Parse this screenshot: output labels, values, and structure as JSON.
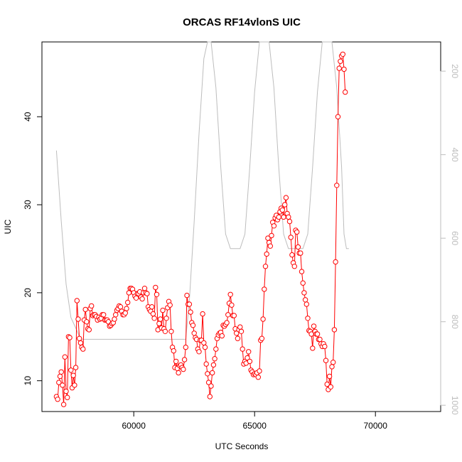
{
  "chart_data": {
    "type": "line",
    "title": "ORCAS RF14vlonS UIC",
    "xlabel": "UTC Seconds",
    "ylabel": "UIC",
    "xlim": [
      56200,
      72700
    ],
    "ylim": [
      6.5,
      48.5
    ],
    "x_ticks": [
      60000,
      65000,
      70000
    ],
    "x_tick_labels": [
      "60000",
      "65000",
      "70000"
    ],
    "y_ticks": [
      10,
      20,
      30,
      40
    ],
    "y_tick_labels": [
      "10",
      "20",
      "30",
      "40"
    ],
    "right_axis": {
      "ticks": [
        200,
        400,
        600,
        800,
        1000
      ],
      "tick_labels": [
        "200",
        "400",
        "600",
        "800",
        "1000"
      ],
      "range_top": 130,
      "range_bottom": 1015,
      "color": "#bdbdbd"
    },
    "colors": {
      "uic": "#ff0000",
      "pressure": "#bdbdbd",
      "axes": "#000000"
    },
    "series": [
      {
        "values": [
          [
            56800,
            8.2
          ],
          [
            56850,
            7.9
          ],
          [
            56900,
            9.8
          ],
          [
            56950,
            10.5
          ],
          [
            57000,
            11.0
          ],
          [
            57050,
            9.5
          ],
          [
            57100,
            7.3
          ],
          [
            57150,
            12.7
          ],
          [
            57200,
            8.8
          ],
          [
            57250,
            8.1
          ],
          [
            57300,
            15.0
          ],
          [
            57350,
            14.9
          ],
          [
            57400,
            11.2
          ],
          [
            57450,
            9.2
          ],
          [
            57500,
            10.6
          ],
          [
            57550,
            9.5
          ],
          [
            57600,
            11.5
          ],
          [
            57650,
            19.1
          ],
          [
            57700,
            17.0
          ],
          [
            57750,
            14.8
          ],
          [
            57800,
            14.3
          ],
          [
            57850,
            13.8
          ],
          [
            57900,
            13.6
          ],
          [
            57950,
            16.9
          ],
          [
            58000,
            18.1
          ],
          [
            58050,
            16.7
          ],
          [
            58100,
            15.9
          ],
          [
            58150,
            15.8
          ],
          [
            58200,
            18.2
          ],
          [
            58250,
            18.5
          ],
          [
            58300,
            17.4
          ],
          [
            58350,
            17.5
          ],
          [
            58400,
            17.5
          ],
          [
            58450,
            17.3
          ],
          [
            58500,
            16.9
          ],
          [
            58550,
            17.2
          ],
          [
            58600,
            17.0
          ],
          [
            58650,
            17.1
          ],
          [
            58700,
            17.5
          ],
          [
            58750,
            17.5
          ],
          [
            58800,
            16.9
          ],
          [
            58850,
            16.9
          ],
          [
            58900,
            16.9
          ],
          [
            58950,
            16.7
          ],
          [
            59000,
            16.2
          ],
          [
            59050,
            16.3
          ],
          [
            59100,
            16.5
          ],
          [
            59150,
            16.6
          ],
          [
            59200,
            17.0
          ],
          [
            59250,
            17.5
          ],
          [
            59300,
            18.0
          ],
          [
            59350,
            18.2
          ],
          [
            59400,
            18.5
          ],
          [
            59450,
            18.4
          ],
          [
            59500,
            17.9
          ],
          [
            59550,
            17.5
          ],
          [
            59600,
            17.5
          ],
          [
            59650,
            17.7
          ],
          [
            59700,
            18.2
          ],
          [
            59750,
            18.9
          ],
          [
            59800,
            20.0
          ],
          [
            59850,
            20.5
          ],
          [
            59900,
            20.5
          ],
          [
            59950,
            20.4
          ],
          [
            60000,
            20.0
          ],
          [
            60050,
            19.6
          ],
          [
            60100,
            19.4
          ],
          [
            60150,
            19.9
          ],
          [
            60200,
            19.9
          ],
          [
            60250,
            20.1
          ],
          [
            60300,
            19.5
          ],
          [
            60350,
            19.3
          ],
          [
            60400,
            20.0
          ],
          [
            60450,
            20.5
          ],
          [
            60500,
            20.0
          ],
          [
            60550,
            19.9
          ],
          [
            60600,
            18.4
          ],
          [
            60650,
            18.1
          ],
          [
            60700,
            17.9
          ],
          [
            60750,
            18.4
          ],
          [
            60800,
            17.6
          ],
          [
            60850,
            17.1
          ],
          [
            60900,
            20.6
          ],
          [
            60950,
            19.8
          ],
          [
            61000,
            15.8
          ],
          [
            61050,
            16.5
          ],
          [
            61100,
            17.0
          ],
          [
            61150,
            16.0
          ],
          [
            61200,
            18.0
          ],
          [
            61250,
            15.9
          ],
          [
            61300,
            15.6
          ],
          [
            61350,
            17.1
          ],
          [
            61400,
            18.3
          ],
          [
            61450,
            19.0
          ],
          [
            61500,
            18.6
          ],
          [
            61550,
            15.6
          ],
          [
            61600,
            13.8
          ],
          [
            61650,
            13.4
          ],
          [
            61700,
            11.5
          ],
          [
            61750,
            12.2
          ],
          [
            61800,
            11.4
          ],
          [
            61850,
            10.9
          ],
          [
            61900,
            11.7
          ],
          [
            61950,
            11.8
          ],
          [
            62000,
            11.5
          ],
          [
            62050,
            11.3
          ],
          [
            62100,
            12.4
          ],
          [
            62150,
            13.8
          ],
          [
            62200,
            19.7
          ],
          [
            62250,
            18.7
          ],
          [
            62300,
            18.7
          ],
          [
            62350,
            17.8
          ],
          [
            62400,
            16.6
          ],
          [
            62450,
            16.3
          ],
          [
            62500,
            15.4
          ],
          [
            62550,
            14.9
          ],
          [
            62600,
            14.7
          ],
          [
            62650,
            13.6
          ],
          [
            62700,
            13.3
          ],
          [
            62750,
            14.6
          ],
          [
            62800,
            14.6
          ],
          [
            62850,
            17.6
          ],
          [
            62900,
            14.3
          ],
          [
            62950,
            13.8
          ],
          [
            63000,
            11.9
          ],
          [
            63050,
            10.8
          ],
          [
            63100,
            9.8
          ],
          [
            63150,
            8.2
          ],
          [
            63200,
            9.4
          ],
          [
            63250,
            10.9
          ],
          [
            63300,
            11.8
          ],
          [
            63350,
            12.5
          ],
          [
            63400,
            13.6
          ],
          [
            63450,
            14.8
          ],
          [
            63500,
            15.2
          ],
          [
            63550,
            15.4
          ],
          [
            63600,
            15.5
          ],
          [
            63650,
            15.1
          ],
          [
            63700,
            16.3
          ],
          [
            63750,
            16.2
          ],
          [
            63800,
            16.4
          ],
          [
            63850,
            16.6
          ],
          [
            63900,
            17.5
          ],
          [
            63950,
            18.8
          ],
          [
            64000,
            19.8
          ],
          [
            64050,
            18.6
          ],
          [
            64100,
            17.4
          ],
          [
            64150,
            17.4
          ],
          [
            64200,
            15.9
          ],
          [
            64250,
            15.4
          ],
          [
            64300,
            14.8
          ],
          [
            64350,
            15.8
          ],
          [
            64400,
            16.1
          ],
          [
            64450,
            15.6
          ],
          [
            64500,
            13.6
          ],
          [
            64550,
            11.9
          ],
          [
            64600,
            12.2
          ],
          [
            64650,
            12.0
          ],
          [
            64700,
            12.6
          ],
          [
            64750,
            13.3
          ],
          [
            64800,
            12.2
          ],
          [
            64850,
            11.2
          ],
          [
            64900,
            11.0
          ],
          [
            64950,
            10.7
          ],
          [
            65000,
            10.8
          ],
          [
            65050,
            10.7
          ],
          [
            65100,
            10.9
          ],
          [
            65150,
            10.4
          ],
          [
            65200,
            11.1
          ],
          [
            65250,
            14.6
          ],
          [
            65300,
            14.8
          ],
          [
            65350,
            17.0
          ],
          [
            65400,
            20.4
          ],
          [
            65450,
            23.0
          ],
          [
            65500,
            24.4
          ],
          [
            65550,
            26.2
          ],
          [
            65600,
            25.7
          ],
          [
            65650,
            25.3
          ],
          [
            65700,
            26.5
          ],
          [
            65750,
            28.0
          ],
          [
            65800,
            27.6
          ],
          [
            65850,
            28.5
          ],
          [
            65900,
            28.8
          ],
          [
            65950,
            28.3
          ],
          [
            66000,
            28.6
          ],
          [
            66050,
            29.2
          ],
          [
            66100,
            29.6
          ],
          [
            66150,
            29.4
          ],
          [
            66200,
            28.6
          ],
          [
            66250,
            30.0
          ],
          [
            66300,
            30.8
          ],
          [
            66350,
            29.0
          ],
          [
            66400,
            28.6
          ],
          [
            66450,
            28.1
          ],
          [
            66500,
            26.3
          ],
          [
            66550,
            24.3
          ],
          [
            66600,
            23.4
          ],
          [
            66650,
            23.0
          ],
          [
            66700,
            27.1
          ],
          [
            66750,
            26.9
          ],
          [
            66800,
            25.2
          ],
          [
            66850,
            24.5
          ],
          [
            66900,
            24.5
          ],
          [
            66950,
            22.4
          ],
          [
            67000,
            21.1
          ],
          [
            67050,
            20.0
          ],
          [
            67100,
            19.2
          ],
          [
            67150,
            18.7
          ],
          [
            67200,
            17.1
          ],
          [
            67250,
            15.7
          ],
          [
            67300,
            15.6
          ],
          [
            67350,
            15.3
          ],
          [
            67400,
            13.7
          ],
          [
            67450,
            16.2
          ],
          [
            67500,
            15.6
          ],
          [
            67550,
            15.3
          ],
          [
            67600,
            15.3
          ],
          [
            67650,
            14.7
          ],
          [
            67700,
            14.7
          ],
          [
            67750,
            14.2
          ],
          [
            67800,
            13.9
          ],
          [
            67850,
            14.2
          ],
          [
            67900,
            13.9
          ],
          [
            67950,
            12.3
          ],
          [
            68000,
            9.6
          ],
          [
            68050,
            9.0
          ],
          [
            68100,
            10.5
          ],
          [
            68150,
            9.3
          ],
          [
            68200,
            11.6
          ],
          [
            68250,
            12.1
          ],
          [
            68300,
            15.8
          ],
          [
            68350,
            23.5
          ],
          [
            68400,
            32.2
          ],
          [
            68450,
            40.0
          ],
          [
            68500,
            45.5
          ],
          [
            68550,
            46.3
          ],
          [
            68600,
            46.9
          ],
          [
            68650,
            47.1
          ],
          [
            68700,
            45.4
          ],
          [
            68750,
            42.8
          ]
        ]
      },
      {
        "values": [
          [
            56800,
            390
          ],
          [
            57000,
            560
          ],
          [
            57200,
            710
          ],
          [
            57400,
            790
          ],
          [
            57600,
            815
          ],
          [
            57800,
            842
          ],
          [
            58000,
            842
          ],
          [
            60000,
            842
          ],
          [
            62000,
            842
          ],
          [
            62150,
            842
          ],
          [
            62300,
            750
          ],
          [
            62500,
            560
          ],
          [
            62700,
            350
          ],
          [
            62900,
            170
          ],
          [
            63050,
            100
          ],
          [
            63200,
            100
          ],
          [
            63400,
            240
          ],
          [
            63600,
            430
          ],
          [
            63800,
            590
          ],
          [
            64000,
            625
          ],
          [
            64200,
            625
          ],
          [
            64400,
            625
          ],
          [
            64600,
            590
          ],
          [
            64800,
            430
          ],
          [
            65000,
            250
          ],
          [
            65200,
            130
          ],
          [
            65400,
            100
          ],
          [
            65600,
            100
          ],
          [
            65800,
            240
          ],
          [
            66000,
            430
          ],
          [
            66200,
            590
          ],
          [
            66400,
            625
          ],
          [
            66600,
            625
          ],
          [
            66800,
            625
          ],
          [
            67000,
            625
          ],
          [
            67200,
            590
          ],
          [
            67400,
            430
          ],
          [
            67600,
            250
          ],
          [
            67800,
            130
          ],
          [
            68000,
            100
          ],
          [
            68200,
            100
          ],
          [
            68400,
            240
          ],
          [
            68600,
            430
          ],
          [
            68700,
            590
          ],
          [
            68800,
            625
          ],
          [
            68900,
            625
          ]
        ]
      }
    ]
  }
}
